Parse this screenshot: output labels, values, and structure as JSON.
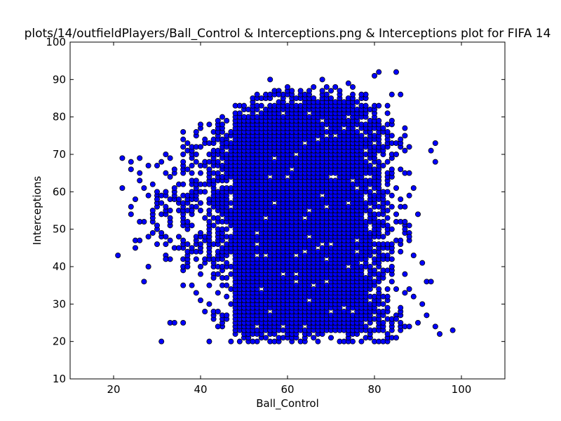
{
  "chart_data": {
    "type": "scatter",
    "title": "plots/14/outfieldPlayers/Ball_Control & Interceptions.png & Interceptions plot for FIFA 14",
    "xlabel": "Ball_Control",
    "ylabel": "Interceptions",
    "xlim": [
      10,
      110
    ],
    "ylim": [
      10,
      100
    ],
    "xticks": [
      "20",
      "40",
      "60",
      "80",
      "100"
    ],
    "yticks": [
      "10",
      "20",
      "30",
      "40",
      "50",
      "60",
      "70",
      "80",
      "90",
      "100"
    ],
    "grid": false,
    "marker_color": "#0000ff",
    "marker_edge_color": "#000000",
    "points_note_outliers": [
      [
        21,
        43
      ],
      [
        22,
        61
      ],
      [
        22,
        69
      ],
      [
        24,
        54
      ],
      [
        24,
        68
      ],
      [
        26,
        69
      ],
      [
        28,
        67
      ],
      [
        29,
        62
      ],
      [
        30,
        67
      ],
      [
        31,
        20
      ],
      [
        31,
        68
      ],
      [
        33,
        25
      ],
      [
        34,
        25
      ],
      [
        36,
        25
      ],
      [
        36,
        35
      ],
      [
        38,
        35
      ],
      [
        27,
        36
      ],
      [
        39,
        33
      ],
      [
        42,
        20
      ],
      [
        44,
        24
      ],
      [
        47,
        20
      ],
      [
        48,
        22
      ],
      [
        52,
        20
      ],
      [
        54,
        22
      ],
      [
        56,
        90
      ],
      [
        58,
        86
      ],
      [
        60,
        88
      ],
      [
        63,
        87
      ],
      [
        65,
        85
      ],
      [
        68,
        90
      ],
      [
        71,
        88
      ],
      [
        74,
        89
      ],
      [
        77,
        86
      ],
      [
        80,
        91
      ],
      [
        81,
        92
      ],
      [
        85,
        92
      ],
      [
        84,
        86
      ],
      [
        86,
        86
      ],
      [
        87,
        77
      ],
      [
        88,
        72
      ],
      [
        89,
        61
      ],
      [
        90,
        54
      ],
      [
        88,
        48
      ],
      [
        89,
        43
      ],
      [
        91,
        41
      ],
      [
        92,
        36
      ],
      [
        93,
        36
      ],
      [
        91,
        30
      ],
      [
        92,
        27
      ],
      [
        90,
        25
      ],
      [
        88,
        24
      ],
      [
        94,
        24
      ],
      [
        95,
        22
      ],
      [
        98,
        23
      ],
      [
        93,
        71
      ],
      [
        94,
        73
      ],
      [
        94,
        68
      ],
      [
        86,
        56
      ],
      [
        87,
        50
      ],
      [
        86,
        44
      ],
      [
        87,
        38
      ],
      [
        88,
        34
      ],
      [
        89,
        32
      ],
      [
        86,
        29
      ],
      [
        85,
        26
      ],
      [
        84,
        21
      ],
      [
        30,
        51
      ],
      [
        28,
        48
      ],
      [
        26,
        52
      ],
      [
        25,
        45
      ],
      [
        28,
        40
      ],
      [
        32,
        42
      ],
      [
        35,
        45
      ],
      [
        37,
        40
      ],
      [
        40,
        38
      ],
      [
        43,
        37
      ],
      [
        45,
        40
      ],
      [
        41,
        28
      ],
      [
        44,
        28
      ],
      [
        46,
        35
      ],
      [
        48,
        30
      ],
      [
        38,
        55
      ],
      [
        40,
        60
      ],
      [
        42,
        65
      ],
      [
        44,
        70
      ],
      [
        46,
        73
      ],
      [
        48,
        76
      ],
      [
        50,
        80
      ],
      [
        52,
        82
      ],
      [
        55,
        85
      ],
      [
        40,
        77
      ],
      [
        36,
        70
      ],
      [
        34,
        66
      ],
      [
        32,
        60
      ],
      [
        30,
        58
      ],
      [
        33,
        55
      ]
    ],
    "core_ranges": {
      "x_range": [
        22,
        98
      ],
      "y_range": [
        20,
        92
      ],
      "dense_x_range": [
        48,
        80
      ],
      "dense_y_range": [
        20,
        84
      ]
    }
  }
}
